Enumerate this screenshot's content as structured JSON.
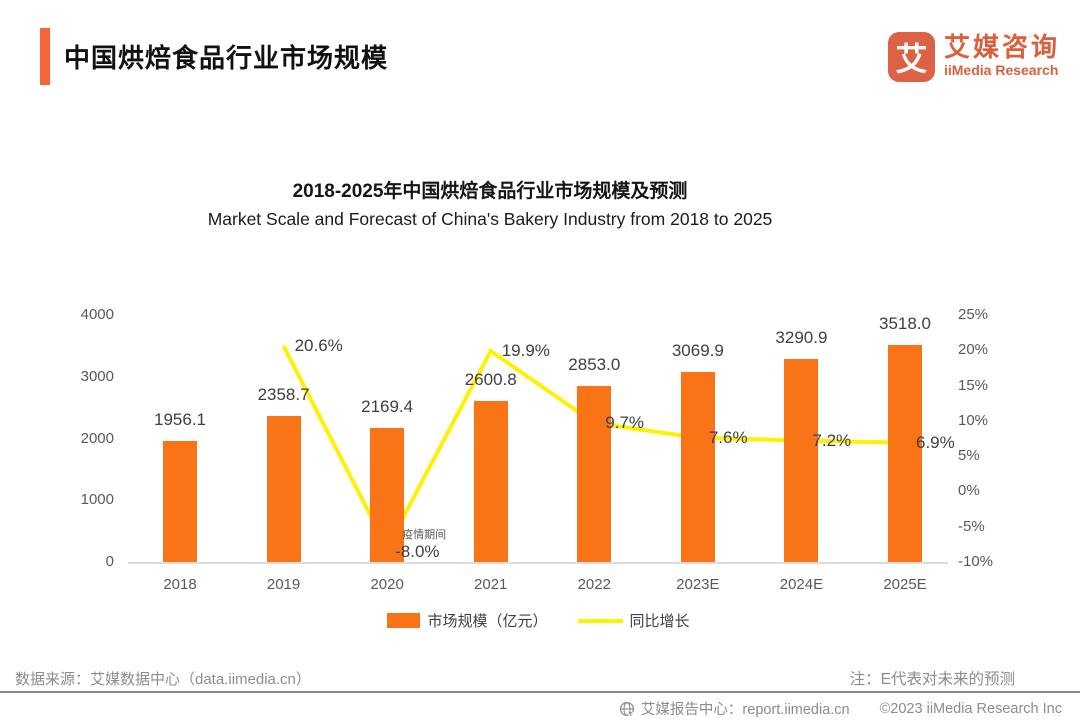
{
  "header": {
    "title": "中国烘焙食品行业市场规模"
  },
  "logo": {
    "glyph": "艾",
    "name_cn": "艾媒咨询",
    "name_en": "iiMedia Research"
  },
  "chart_data": {
    "type": "bar+line",
    "title": "2018-2025年中国烘焙食品行业市场规模及预测",
    "subtitle": "Market Scale and Forecast of China's Bakery Industry from 2018 to 2025",
    "categories": [
      "2018",
      "2019",
      "2020",
      "2021",
      "2022",
      "2023E",
      "2024E",
      "2025E"
    ],
    "series": [
      {
        "name": "市场规模（亿元）",
        "type": "bar",
        "color": "#F87416",
        "values": [
          1956.1,
          2358.7,
          2169.4,
          2600.8,
          2853.0,
          3069.9,
          3290.9,
          3518.0
        ],
        "labels": [
          "1956.1",
          "2358.7",
          "2169.4",
          "2600.8",
          "2853.0",
          "3069.9",
          "3290.9",
          "3518.0"
        ]
      },
      {
        "name": "同比增长",
        "type": "line",
        "color": "#FFF100",
        "values": [
          null,
          20.6,
          -8.0,
          19.9,
          9.7,
          7.6,
          7.2,
          6.9
        ],
        "labels": [
          null,
          "20.6%",
          "-8.0%",
          "19.9%",
          "9.7%",
          "7.6%",
          "7.2%",
          "6.9%"
        ]
      }
    ],
    "left_axis": {
      "ticks": [
        0,
        1000,
        2000,
        3000,
        4000
      ],
      "min": 0,
      "max": 4000
    },
    "right_axis": {
      "ticks": [
        -10,
        -5,
        0,
        5,
        10,
        15,
        20,
        25
      ],
      "min": -10,
      "max": 25,
      "suffix": "%"
    },
    "annotation": {
      "text": "疫情期间",
      "category": "2020"
    },
    "legend_position": "bottom",
    "grid": "off"
  },
  "footer": {
    "source": "数据来源：艾媒数据中心（data.iimedia.cn）",
    "note": "注：E代表对未来的预测",
    "report_center": "艾媒报告中心：report.iimedia.cn",
    "copyright": "©2023 iiMedia Research  Inc"
  }
}
